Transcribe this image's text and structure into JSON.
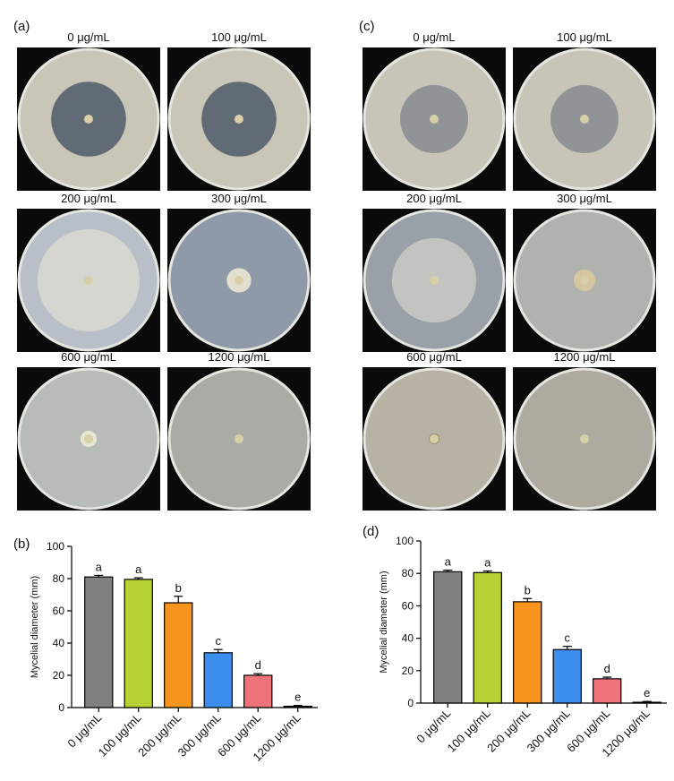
{
  "panels": [
    {
      "label": "(a)",
      "plates": [
        "0 μg/mL",
        "100 μg/mL",
        "200 μg/mL",
        "300 μg/mL",
        "600 μg/mL",
        "1200 μg/mL"
      ]
    },
    {
      "label": "(c)",
      "plates": [
        "0 μg/mL",
        "100 μg/mL",
        "200 μg/mL",
        "300 μg/mL",
        "600 μg/mL",
        "1200 μg/mL"
      ]
    }
  ],
  "chart_data": [
    {
      "type": "bar",
      "panel_label": "(b)",
      "y_label": "Mycelial diameter (mm)",
      "categories": [
        "0 μg/mL",
        "100 μg/mL",
        "200 μg/mL",
        "300 μg/mL",
        "600 μg/mL",
        "1200 μg/mL"
      ],
      "values": [
        81,
        79.5,
        65,
        34,
        20,
        0.8
      ],
      "errors": [
        1,
        1,
        4,
        2,
        1,
        0.5
      ],
      "letters": [
        "a",
        "a",
        "b",
        "c",
        "d",
        "e"
      ],
      "colors": [
        "#808080",
        "#b5d334",
        "#f7941d",
        "#3d8fef",
        "#f0727a",
        "#333333"
      ],
      "ylim": [
        0,
        100
      ],
      "yticks": [
        0,
        20,
        40,
        60,
        80,
        100
      ]
    },
    {
      "type": "bar",
      "panel_label": "(d)",
      "y_label": "Mycelial diameter (mm)",
      "categories": [
        "0 μg/mL",
        "100 μg/mL",
        "200 μg/mL",
        "300 μg/mL",
        "600 μg/mL",
        "1200 μg/mL"
      ],
      "values": [
        81,
        80.5,
        62.5,
        33,
        15,
        0.5
      ],
      "errors": [
        1,
        1,
        2,
        2,
        1,
        0.5
      ],
      "letters": [
        "a",
        "a",
        "b",
        "c",
        "d",
        "e"
      ],
      "colors": [
        "#808080",
        "#b5d334",
        "#f7941d",
        "#3d8fef",
        "#f0727a",
        "#333333"
      ],
      "ylim": [
        0,
        100
      ],
      "yticks": [
        0,
        20,
        40,
        60,
        80,
        100
      ]
    }
  ]
}
